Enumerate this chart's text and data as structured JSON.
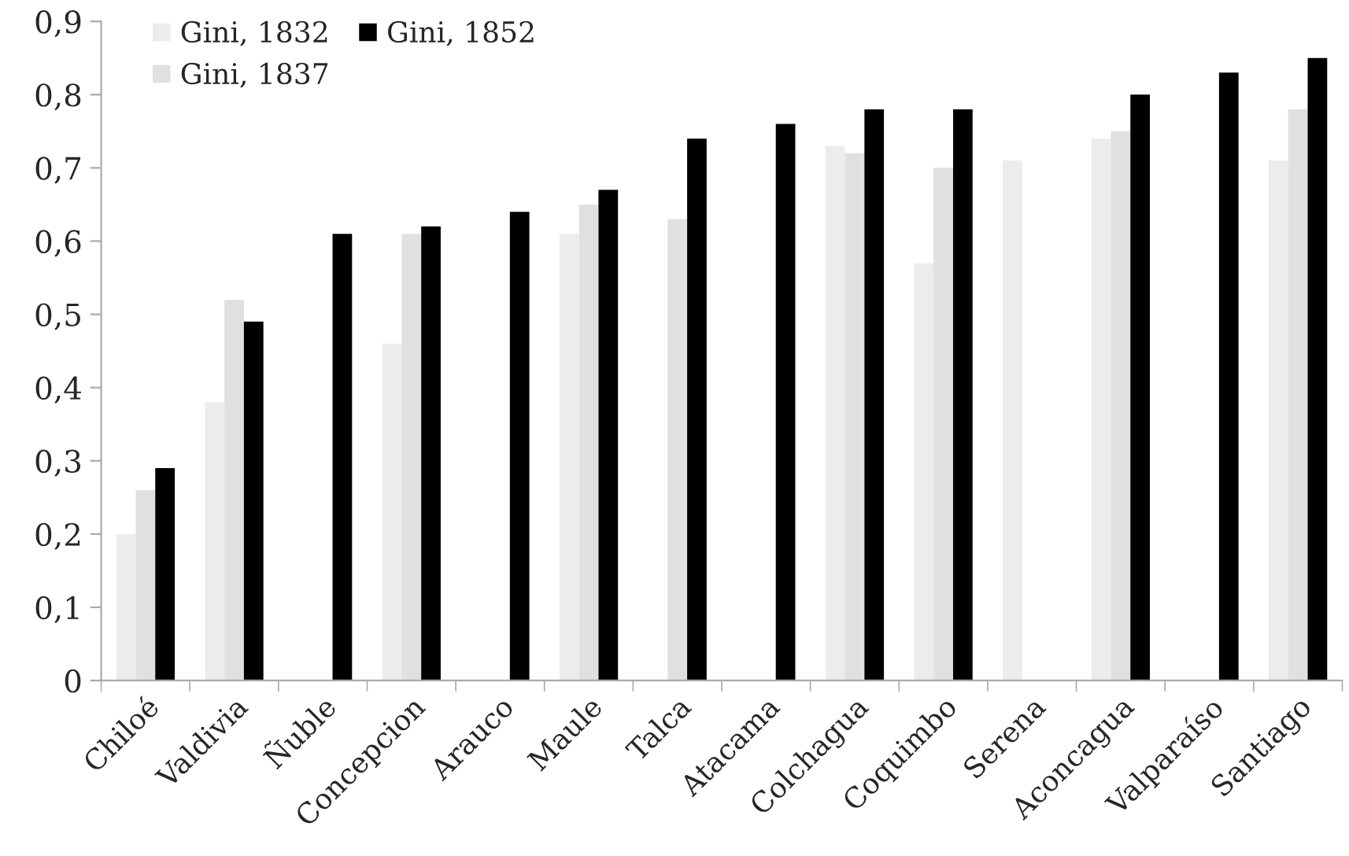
{
  "chart_data": {
    "type": "bar",
    "categories": [
      "Chiloé",
      "Valdivia",
      "Ñuble",
      "Concepcion",
      "Arauco",
      "Maule",
      "Talca",
      "Atacama",
      "Colchagua",
      "Coquimbo",
      "Serena",
      "Aconcagua",
      "Valparaíso",
      "Santiago"
    ],
    "series": [
      {
        "name": "Gini, 1832",
        "color": "#ececec",
        "values": [
          0.2,
          0.38,
          null,
          0.46,
          null,
          0.61,
          null,
          null,
          0.73,
          0.57,
          0.71,
          0.74,
          null,
          0.71
        ]
      },
      {
        "name": "Gini, 1837",
        "color": "#e0e0e0",
        "values": [
          0.26,
          0.52,
          null,
          0.61,
          null,
          0.65,
          0.63,
          null,
          0.72,
          0.7,
          null,
          0.75,
          null,
          0.78
        ]
      },
      {
        "name": "Gini, 1852",
        "color": "#000000",
        "values": [
          0.29,
          0.49,
          0.61,
          0.62,
          0.64,
          0.67,
          0.74,
          0.76,
          0.78,
          0.78,
          null,
          0.8,
          0.83,
          0.85
        ]
      }
    ],
    "ylim": [
      0,
      0.9
    ],
    "yticks": [
      {
        "value": 0,
        "label": "0"
      },
      {
        "value": 0.1,
        "label": "0,1"
      },
      {
        "value": 0.2,
        "label": "0,2"
      },
      {
        "value": 0.3,
        "label": "0,3"
      },
      {
        "value": 0.4,
        "label": "0,4"
      },
      {
        "value": 0.5,
        "label": "0,5"
      },
      {
        "value": 0.6,
        "label": "0,6"
      },
      {
        "value": 0.7,
        "label": "0,7"
      },
      {
        "value": 0.8,
        "label": "0,8"
      },
      {
        "value": 0.9,
        "label": "0,9"
      }
    ],
    "grid": false,
    "legend": "top left"
  }
}
